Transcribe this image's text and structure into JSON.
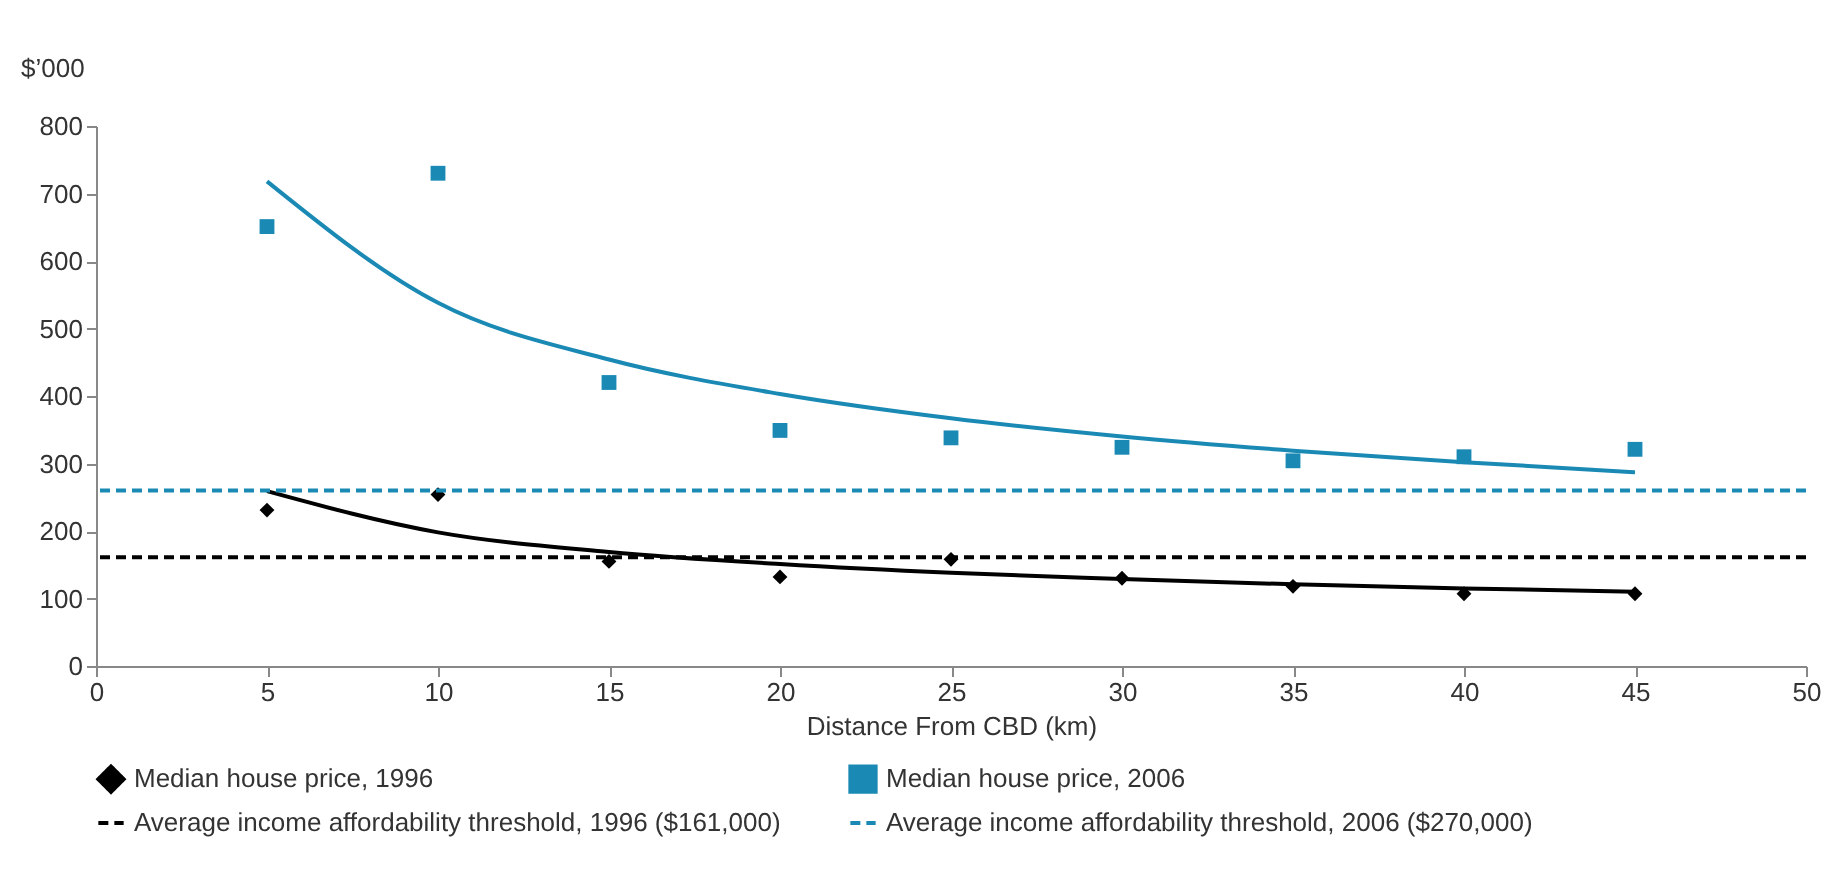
{
  "chart_data": {
    "type": "scatter",
    "xlabel": "Distance From CBD (km)",
    "ylabel": "$’000",
    "xlim": [
      0,
      50
    ],
    "xticks": [
      0,
      5,
      10,
      15,
      20,
      25,
      30,
      35,
      40,
      45,
      50
    ],
    "ylim": [
      0,
      800
    ],
    "yticks": [
      0,
      100,
      200,
      300,
      400,
      500,
      600,
      700,
      800
    ],
    "x": [
      5,
      10,
      15,
      20,
      25,
      30,
      35,
      40,
      45
    ],
    "series": [
      {
        "name": "Median house price, 1996",
        "marker": "diamond",
        "color": "#000000",
        "values": [
          231,
          254,
          155,
          132,
          158,
          130,
          118,
          107,
          107
        ]
      },
      {
        "name": "Median house price, 2006",
        "marker": "square",
        "color": "#1a8ab5",
        "values": [
          651,
          730,
          420,
          349,
          338,
          324,
          304,
          310,
          321
        ]
      },
      {
        "type": "line",
        "color": "#000000",
        "values": [
          259,
          198,
          169,
          151,
          138,
          129,
          121,
          115,
          110
        ]
      },
      {
        "type": "line",
        "color": "#1a8ab5",
        "values": [
          718,
          538,
          454,
          403,
          367,
          340,
          319,
          302,
          287
        ]
      }
    ],
    "ref_lines": [
      {
        "axis": "y",
        "value": 161,
        "label": "Average income affordability threshold, 1996 ($161,000)",
        "color": "#000000",
        "line_style": "dashed"
      },
      {
        "axis": "y",
        "value": 260,
        "label": "Average income affordability threshold, 2006 ($270,000)",
        "color": "#1a8ab5",
        "line_style": "dashed"
      }
    ],
    "grid": false,
    "legend": "bottom"
  }
}
